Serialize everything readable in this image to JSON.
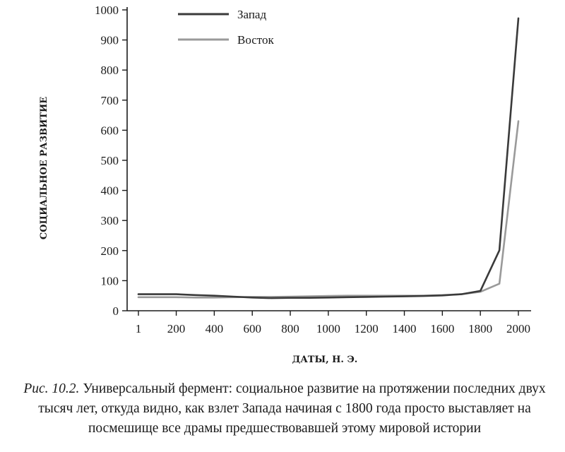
{
  "chart_data": {
    "type": "line",
    "xlabel": "ДАТЫ, Н. Э.",
    "ylabel": "СОЦИАЛЬНОЕ РАЗВИТИЕ",
    "ylim": [
      0,
      1000
    ],
    "xlim": [
      1,
      2000
    ],
    "x_ticks": [
      "1",
      "200",
      "400",
      "600",
      "800",
      "1000",
      "1200",
      "1400",
      "1600",
      "1800",
      "2000"
    ],
    "y_ticks": [
      "0",
      "100",
      "200",
      "300",
      "400",
      "500",
      "600",
      "700",
      "800",
      "900",
      "1000"
    ],
    "legend_position": "top-center",
    "grid": false,
    "series": [
      {
        "name": "Запад",
        "color": "#3a3a3a",
        "x": [
          1,
          100,
          200,
          300,
          400,
          500,
          600,
          700,
          800,
          900,
          1000,
          1100,
          1200,
          1300,
          1400,
          1500,
          1600,
          1700,
          1800,
          1900,
          2000
        ],
        "y": [
          55,
          55,
          55,
          52,
          50,
          47,
          44,
          42,
          43,
          43,
          44,
          45,
          46,
          47,
          48,
          49,
          51,
          55,
          66,
          201,
          972
        ]
      },
      {
        "name": "Восток",
        "color": "#9a9a9a",
        "x": [
          1,
          100,
          200,
          300,
          400,
          500,
          600,
          700,
          800,
          900,
          1000,
          1100,
          1200,
          1300,
          1400,
          1500,
          1600,
          1700,
          1800,
          1900,
          2000
        ],
        "y": [
          45,
          45,
          45,
          44,
          44,
          45,
          46,
          46,
          47,
          48,
          49,
          50,
          50,
          50,
          50,
          50,
          52,
          55,
          63,
          90,
          630
        ]
      }
    ]
  },
  "caption": {
    "figure_label": "Рис. 10.2.",
    "text": "Универсальный фермент: социальное развитие на протяжении последних двух тысяч лет, откуда видно, как взлет Запада начиная с 1800 года просто выставляет на посмешище все драмы предшествовавшей этому мировой истории"
  }
}
